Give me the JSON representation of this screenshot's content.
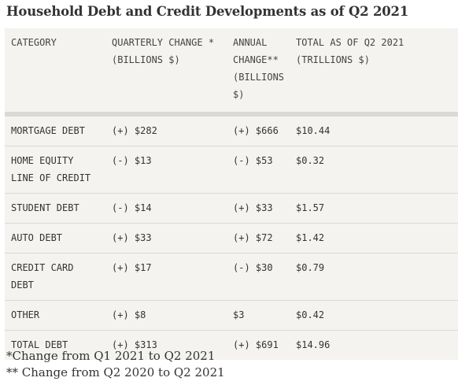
{
  "title": "Household Debt and Credit Developments as of Q2 2021",
  "table": {
    "headers": [
      "CATEGORY",
      "QUARTERLY CHANGE * (BILLIONS $)",
      "ANNUAL CHANGE** (BILLIONS $)",
      "TOTAL AS OF Q2 2021 (TRILLIONS $)"
    ],
    "rows": [
      [
        "MORTGAGE DEBT",
        "(+) $282",
        "(+) $666",
        "$10.44"
      ],
      [
        "HOME EQUITY LINE OF CREDIT",
        "(-) $13",
        "(-) $53",
        "$0.32"
      ],
      [
        "STUDENT DEBT",
        "(-) $14",
        "(+) $33",
        "$1.57"
      ],
      [
        "AUTO DEBT",
        "(+) $33",
        "(+) $72",
        "$1.42"
      ],
      [
        "CREDIT CARD DEBT",
        "(+) $17",
        "(-) $30",
        "$0.79"
      ],
      [
        "OTHER",
        "(+) $8",
        "$3",
        "$0.42"
      ],
      [
        "TOTAL DEBT",
        "(+) $313",
        "(+) $691",
        "$14.96"
      ]
    ]
  },
  "footnotes": [
    "*Change from Q1 2021 to Q2 2021",
    "** Change from Q2 2020 to Q2 2021"
  ]
}
